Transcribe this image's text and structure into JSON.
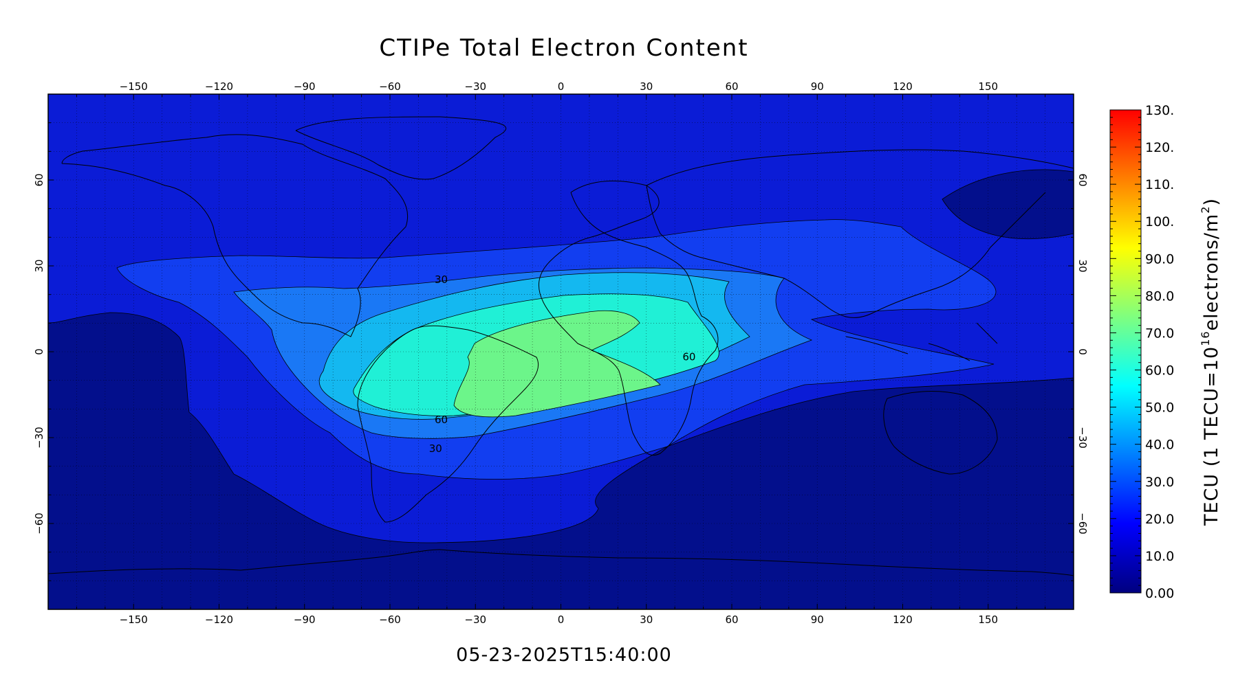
{
  "title": "CTIPe Total Electron Content",
  "timestamp": "05-23-2025T15:40:00",
  "map": {
    "lon_range": [
      -180,
      180
    ],
    "lat_range": [
      -90,
      90
    ],
    "lon_ticks": [
      -150,
      -120,
      -90,
      -60,
      -30,
      0,
      30,
      60,
      90,
      120,
      150
    ],
    "lat_ticks": [
      60,
      30,
      0,
      -30,
      -60
    ],
    "lon_tick_labels": [
      "−150",
      "−120",
      "−90",
      "−60",
      "−30",
      "0",
      "30",
      "60",
      "90",
      "120",
      "150"
    ],
    "lat_tick_labels": [
      "60",
      "30",
      "0",
      "−30",
      "−60"
    ],
    "grid": "dotted",
    "contour_labels": [
      {
        "text": "30",
        "lon": -42,
        "lat": 24
      },
      {
        "text": "60",
        "lon": -42,
        "lat": -25
      },
      {
        "text": "30",
        "lon": -44,
        "lat": -35
      },
      {
        "text": "60",
        "lon": 45,
        "lat": -3
      }
    ],
    "levels_tecu": [
      0,
      10,
      20,
      30,
      40,
      50,
      60
    ]
  },
  "colorbar": {
    "unit_label": "TECU  (1 TECU=10",
    "unit_exponent": "16",
    "unit_label_tail": "electrons/m",
    "unit_tail_exponent": "2",
    "unit_label_close": ")",
    "min": 0,
    "max": 130,
    "labels": [
      "130.",
      "120.",
      "110.",
      "100.",
      "90.0",
      "80.0",
      "70.0",
      "60.0",
      "50.0",
      "40.0",
      "30.0",
      "20.0",
      "10.0",
      "0.00"
    ],
    "colors": [
      "#00007f",
      "#0000ff",
      "#007fff",
      "#00ffff",
      "#7fff7f",
      "#ffff00",
      "#ff7f00",
      "#ff0000"
    ]
  },
  "fill_colors": {
    "level0": "#030f8c",
    "level10": "#0b1cd6",
    "level20": "#123ef0",
    "level30": "#1a78f5",
    "level40": "#14b8f0",
    "level50": "#20f0d6",
    "level60": "#6cf58a"
  }
}
